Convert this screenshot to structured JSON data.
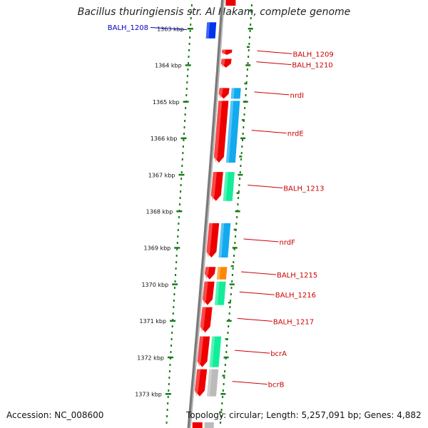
{
  "title": "Bacillus thuringiensis str. Al Hakam, complete genome",
  "footer": {
    "accession": "Accession: NC_008600",
    "summary": "Topology: circular; Length: 5,257,091 bp; Genes: 4,882"
  },
  "colors": {
    "backbone": "#7a7a7a",
    "dots": "#1a7a1a",
    "forward_strand": "#ee0000",
    "cds_blue": "#0033ee",
    "cds_cyan": "#11aaee",
    "cds_teal": "#11ee99",
    "cds_orange": "#ff8800",
    "cds_grey": "#bbbbbb",
    "label_red": "#cc0000",
    "label_blue": "#0000cc"
  },
  "chart_data": {
    "type": "genome_map",
    "topology": "circular",
    "length_bp": 5257091,
    "gene_count": 4882,
    "axis_unit": "kbp",
    "ticks": [
      {
        "label": "1363 kbp",
        "kbp": 1363
      },
      {
        "label": "1364 kbp",
        "kbp": 1364
      },
      {
        "label": "1365 kbp",
        "kbp": 1365
      },
      {
        "label": "1366 kbp",
        "kbp": 1366
      },
      {
        "label": "1367 kbp",
        "kbp": 1367
      },
      {
        "label": "1368 kbp",
        "kbp": 1368
      },
      {
        "label": "1369 kbp",
        "kbp": 1369
      },
      {
        "label": "1370 kbp",
        "kbp": 1370
      },
      {
        "label": "1371 kbp",
        "kbp": 1371
      },
      {
        "label": "1372 kbp",
        "kbp": 1372
      },
      {
        "label": "1373 kbp",
        "kbp": 1373
      }
    ],
    "genes": [
      {
        "name": "BALH_1208",
        "start": 1362.8,
        "end": 1363.3,
        "strand": "reverse",
        "cds_color": "cds_blue"
      },
      {
        "name": "BALH_1209",
        "start": 1363.55,
        "end": 1363.75,
        "strand": "forward",
        "cds_color": null
      },
      {
        "name": "BALH_1210",
        "start": 1363.8,
        "end": 1364.1,
        "strand": "forward",
        "cds_color": null
      },
      {
        "name": "nrdI",
        "start": 1364.6,
        "end": 1364.95,
        "strand": "forward",
        "cds_color": "cds_cyan"
      },
      {
        "name": "nrdE",
        "start": 1364.95,
        "end": 1366.7,
        "strand": "forward",
        "cds_color": "cds_cyan"
      },
      {
        "name": "BALH_1213",
        "start": 1366.9,
        "end": 1367.75,
        "strand": "forward",
        "cds_color": "cds_teal"
      },
      {
        "name": "nrdF",
        "start": 1368.3,
        "end": 1369.3,
        "strand": "forward",
        "cds_color": "cds_cyan"
      },
      {
        "name": "BALH_1215",
        "start": 1369.5,
        "end": 1369.9,
        "strand": "forward",
        "cds_color": "cds_orange"
      },
      {
        "name": "BALH_1216",
        "start": 1369.9,
        "end": 1370.6,
        "strand": "forward",
        "cds_color": "cds_teal"
      },
      {
        "name": "BALH_1217",
        "start": 1370.6,
        "end": 1371.35,
        "strand": "forward",
        "cds_color": null
      },
      {
        "name": "bcrA",
        "start": 1371.4,
        "end": 1372.3,
        "strand": "forward",
        "cds_color": "cds_teal"
      },
      {
        "name": "bcrB",
        "start": 1372.3,
        "end": 1373.1,
        "strand": "forward",
        "cds_color": "cds_grey"
      }
    ]
  }
}
